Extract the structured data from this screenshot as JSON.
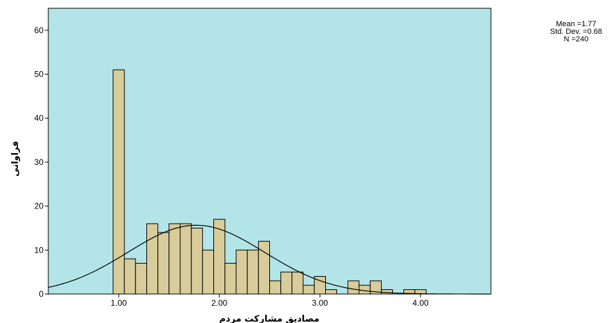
{
  "chart_data": {
    "type": "histogram",
    "xlabel": "مصادیق مشارکت مردم",
    "ylabel": "فراوانی",
    "xlim": [
      0.3,
      4.7
    ],
    "ylim": [
      0,
      65
    ],
    "x_ticks": [
      1.0,
      2.0,
      3.0,
      4.0
    ],
    "x_tick_labels": [
      "1.00",
      "2.00",
      "3.00",
      "4.00"
    ],
    "y_ticks": [
      0,
      10,
      20,
      30,
      40,
      50,
      60
    ],
    "y_tick_labels": [
      "0",
      "10",
      "20",
      "30",
      "40",
      "50",
      "60"
    ],
    "bin_width": 0.1111,
    "bins": [
      {
        "start": 0.944,
        "end": 1.056,
        "count": 51
      },
      {
        "start": 1.056,
        "end": 1.167,
        "count": 8
      },
      {
        "start": 1.167,
        "end": 1.278,
        "count": 7
      },
      {
        "start": 1.278,
        "end": 1.389,
        "count": 16
      },
      {
        "start": 1.389,
        "end": 1.5,
        "count": 14
      },
      {
        "start": 1.5,
        "end": 1.611,
        "count": 16
      },
      {
        "start": 1.611,
        "end": 1.722,
        "count": 16
      },
      {
        "start": 1.722,
        "end": 1.833,
        "count": 15
      },
      {
        "start": 1.833,
        "end": 1.944,
        "count": 10
      },
      {
        "start": 1.944,
        "end": 2.056,
        "count": 17
      },
      {
        "start": 2.056,
        "end": 2.167,
        "count": 7
      },
      {
        "start": 2.167,
        "end": 2.278,
        "count": 10
      },
      {
        "start": 2.278,
        "end": 2.389,
        "count": 10
      },
      {
        "start": 2.389,
        "end": 2.5,
        "count": 12
      },
      {
        "start": 2.5,
        "end": 2.611,
        "count": 3
      },
      {
        "start": 2.611,
        "end": 2.722,
        "count": 5
      },
      {
        "start": 2.722,
        "end": 2.833,
        "count": 5
      },
      {
        "start": 2.833,
        "end": 2.944,
        "count": 2
      },
      {
        "start": 2.944,
        "end": 3.056,
        "count": 4
      },
      {
        "start": 3.056,
        "end": 3.167,
        "count": 1
      },
      {
        "start": 3.167,
        "end": 3.278,
        "count": 0
      },
      {
        "start": 3.278,
        "end": 3.389,
        "count": 3
      },
      {
        "start": 3.389,
        "end": 3.5,
        "count": 2
      },
      {
        "start": 3.5,
        "end": 3.611,
        "count": 3
      },
      {
        "start": 3.611,
        "end": 3.722,
        "count": 1
      },
      {
        "start": 3.722,
        "end": 3.833,
        "count": 0
      },
      {
        "start": 3.833,
        "end": 3.944,
        "count": 1
      },
      {
        "start": 3.944,
        "end": 4.056,
        "count": 1
      }
    ],
    "normal_curve": {
      "mean": 1.77,
      "sd": 0.68,
      "n": 240
    },
    "stats_text": [
      "Mean =1.77",
      "Std. Dev. =0.68",
      "N =240"
    ],
    "grid": false,
    "colors": {
      "plot_background": "#b3e5e8",
      "bar_fill": "#d8cc9a",
      "bar_stroke": "#000000",
      "curve": "#000000"
    }
  }
}
